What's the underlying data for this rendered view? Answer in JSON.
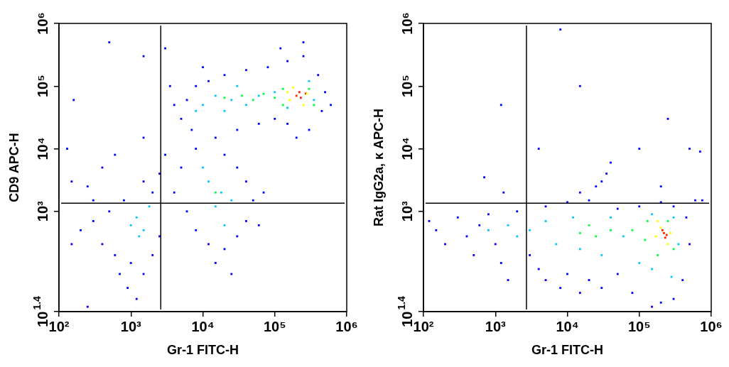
{
  "chart_data": [
    {
      "type": "scatter",
      "xlabel": "Gr-1 FITC-H",
      "ylabel": "CD9 APC-H",
      "log": "xy",
      "grid": false,
      "legend": false,
      "marker": "square",
      "xlim": [
        100,
        1000000
      ],
      "ylim": [
        25.1,
        1000000
      ],
      "xticks": [
        {
          "value": 100,
          "label": "10²"
        },
        {
          "value": 1000,
          "label": "10³"
        },
        {
          "value": 10000,
          "label": "10⁴"
        },
        {
          "value": 100000,
          "label": "10⁵"
        },
        {
          "value": 1000000,
          "label": "10⁶"
        }
      ],
      "yticks": [
        {
          "value": 25.1,
          "label": "10$^{1.4}$"
        },
        {
          "value": 1000,
          "label": "10³"
        },
        {
          "value": 10000,
          "label": "10⁴"
        },
        {
          "value": 100000,
          "label": "10⁵"
        },
        {
          "value": 1000000,
          "label": "10⁶"
        }
      ],
      "ref_lines": [
        {
          "axis": "x",
          "value": 2600,
          "color": "#000000"
        },
        {
          "axis": "y",
          "value": 1350,
          "color": "#000000"
        }
      ],
      "series": [
        {
          "color": "#0000ff",
          "x": [
            5000,
            6000,
            8000,
            12000,
            20000,
            40000,
            80000,
            150000,
            250000,
            400000,
            500000,
            450000,
            300000,
            200000,
            150000,
            100000,
            60000,
            30000,
            15000,
            7000,
            4000,
            3500,
            10000,
            250000,
            120000,
            3000,
            1500,
            600000,
            3000,
            5000,
            8000,
            20000,
            30000,
            40000,
            50000,
            40000,
            30000,
            20000,
            12000,
            8000,
            6000,
            4000,
            2500,
            15000,
            25000,
            60000,
            70000,
            2000,
            1500,
            800,
            500,
            300,
            200,
            150,
            400,
            600,
            1000,
            1500,
            2000,
            2500,
            700,
            900,
            1200,
            300,
            150,
            600,
            400,
            250,
            1500,
            160,
            500,
            250,
            130
          ],
          "values": [
            30000,
            60000,
            100000,
            120000,
            150000,
            180000,
            200000,
            250000,
            300000,
            150000,
            80000,
            40000,
            20000,
            15000,
            25000,
            30000,
            25000,
            20000,
            15000,
            20000,
            50000,
            100000,
            200000,
            500000,
            400000,
            400000,
            300000,
            50000,
            8000,
            5000,
            10000,
            8000,
            5000,
            3000,
            1500,
            700,
            400,
            250,
            300,
            500,
            1000,
            2000,
            4000,
            150,
            100,
            600,
            2000,
            2000,
            3000,
            1500,
            1000,
            700,
            500,
            300,
            300,
            200,
            150,
            100,
            200,
            400,
            100,
            60,
            40,
            1500,
            3000,
            8000,
            5000,
            2500,
            15000,
            60000,
            500000,
            30,
            10000
          ]
        },
        {
          "color": "#00c8ff",
          "x": [
            10000,
            15000,
            25000,
            40000,
            60000,
            100000,
            150000,
            350000,
            300000,
            8000,
            20000,
            30000,
            12000,
            18000,
            15000,
            25000,
            10000,
            20000,
            1200,
            1500,
            1000,
            1800,
            1300
          ],
          "values": [
            50000,
            70000,
            60000,
            50000,
            70000,
            80000,
            45000,
            60000,
            120000,
            40000,
            40000,
            100000,
            3000,
            2000,
            1200,
            1500,
            5000,
            600,
            800,
            500,
            600,
            1200,
            400
          ]
        },
        {
          "color": "#00ff40",
          "x": [
            20000,
            35000,
            50000,
            70000,
            100000,
            130000,
            130000,
            300000,
            350000,
            15000
          ],
          "values": [
            65000,
            70000,
            60000,
            75000,
            65000,
            90000,
            50000,
            90000,
            50000,
            2000
          ]
        },
        {
          "color": "#ffff00",
          "x": [
            160000,
            180000,
            280000,
            250000,
            150000
          ],
          "values": [
            60000,
            95000,
            75000,
            50000,
            80000
          ]
        },
        {
          "color": "#ff2000",
          "x": [
            200000,
            230000,
            220000,
            270000
          ],
          "values": [
            70000,
            65000,
            80000,
            76000
          ]
        }
      ]
    },
    {
      "type": "scatter",
      "xlabel": "Gr-1 FITC-H",
      "ylabel": "Rat IgG2a, κ APC-H",
      "log": "xy",
      "grid": false,
      "legend": false,
      "marker": "square",
      "xlim": [
        100,
        1000000
      ],
      "ylim": [
        25.1,
        1000000
      ],
      "xticks": [
        {
          "value": 100,
          "label": "10²"
        },
        {
          "value": 1000,
          "label": "10³"
        },
        {
          "value": 10000,
          "label": "10⁴"
        },
        {
          "value": 100000,
          "label": "10⁵"
        },
        {
          "value": 1000000,
          "label": "10⁶"
        }
      ],
      "yticks": [
        {
          "value": 25.1,
          "label": "10$^{1.4}$"
        },
        {
          "value": 1000,
          "label": "10³"
        },
        {
          "value": 10000,
          "label": "10⁴"
        },
        {
          "value": 100000,
          "label": "10⁵"
        },
        {
          "value": 1000000,
          "label": "10⁶"
        }
      ],
      "ref_lines": [
        {
          "axis": "x",
          "value": 2700,
          "color": "#000000"
        },
        {
          "axis": "y",
          "value": 1350,
          "color": "#000000"
        }
      ],
      "series": [
        {
          "color": "#0000ff",
          "x": [
            120,
            150,
            200,
            300,
            400,
            500,
            600,
            800,
            1000,
            1200,
            1500,
            2000,
            3000,
            4000,
            5000,
            8000,
            10000,
            15000,
            20000,
            30000,
            50000,
            80000,
            150000,
            200000,
            300000,
            400000,
            500000,
            450000,
            300000,
            200000,
            100000,
            50000,
            20000,
            10000,
            5000,
            30000,
            40000,
            35000,
            25000,
            15000,
            200000,
            100000,
            250000,
            500000,
            700000,
            15000,
            8000,
            1200,
            700,
            1300,
            4000,
            750000,
            600000
          ],
          "values": [
            700,
            500,
            300,
            800,
            400,
            200,
            600,
            900,
            300,
            150,
            80,
            1000,
            200,
            120,
            80,
            60,
            100,
            50,
            80,
            60,
            100,
            50,
            30,
            35,
            40,
            80,
            300,
            800,
            1200,
            1400,
            1200,
            1100,
            1500,
            1400,
            1200,
            3000,
            6000,
            4000,
            2500,
            2000,
            2500,
            10000,
            30000,
            10000,
            9000,
            100000,
            800000,
            50000,
            3500,
            2000,
            10000,
            1500,
            1500
          ]
        },
        {
          "color": "#00c8ff",
          "x": [
            800,
            1500,
            2000,
            3000,
            5000,
            7000,
            15000,
            30000,
            60000,
            100000,
            150000,
            350000,
            300000,
            150000,
            40000,
            12000,
            280000
          ],
          "values": [
            500,
            600,
            400,
            500,
            700,
            300,
            250,
            200,
            400,
            150,
            120,
            300,
            800,
            900,
            800,
            800,
            90
          ]
        },
        {
          "color": "#00ff40",
          "x": [
            15000,
            25000,
            40000,
            20000,
            80000,
            120000,
            300000,
            130000,
            250000,
            180000
          ],
          "values": [
            450,
            400,
            500,
            600,
            500,
            350,
            250,
            700,
            700,
            200
          ]
        },
        {
          "color": "#ffff00",
          "x": [
            170000,
            200000,
            270000,
            250000,
            180000
          ],
          "values": [
            400,
            550,
            450,
            300,
            700
          ]
        },
        {
          "color": "#ff2000",
          "x": [
            220000,
            230000,
            210000,
            240000
          ],
          "values": [
            450,
            380,
            500,
            420
          ]
        }
      ]
    }
  ]
}
